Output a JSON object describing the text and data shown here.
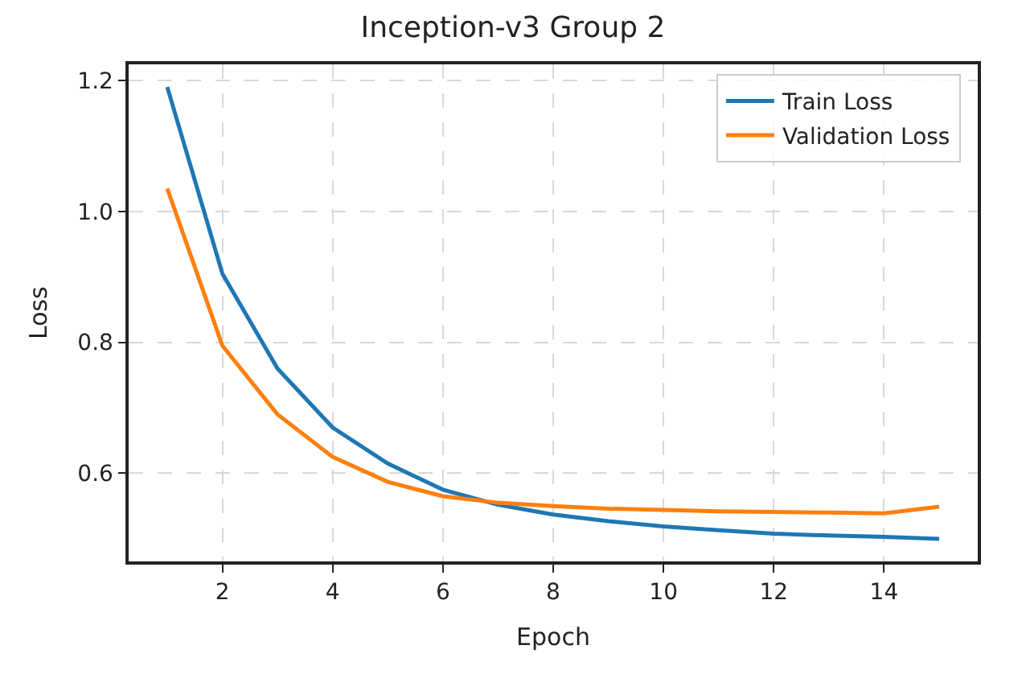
{
  "chart_data": {
    "type": "line",
    "title": "Inception-v3 Group 2",
    "xlabel": "Epoch",
    "ylabel": "Loss",
    "x": [
      1,
      2,
      3,
      4,
      5,
      6,
      7,
      8,
      9,
      10,
      11,
      12,
      13,
      14,
      15
    ],
    "series": [
      {
        "name": "Train Loss",
        "color": "#1f77b4",
        "values": [
          1.19,
          0.905,
          0.76,
          0.67,
          0.615,
          0.575,
          0.552,
          0.537,
          0.527,
          0.519,
          0.513,
          0.508,
          0.505,
          0.503,
          0.5
        ]
      },
      {
        "name": "Validation Loss",
        "color": "#ff7f0e",
        "values": [
          1.035,
          0.795,
          0.69,
          0.625,
          0.587,
          0.565,
          0.555,
          0.55,
          0.546,
          0.544,
          0.542,
          0.541,
          0.54,
          0.539,
          0.549
        ]
      }
    ],
    "xlim": [
      0.3,
      15.7
    ],
    "xticks": [
      2,
      4,
      6,
      8,
      10,
      12,
      14
    ],
    "ylim": [
      0.4655,
      1.2245
    ],
    "yticks": [
      {
        "value": 0.6,
        "label": "0.6"
      },
      {
        "value": 0.8,
        "label": "0.8"
      },
      {
        "value": 1.0,
        "label": "1.0"
      },
      {
        "value": 1.2,
        "label": "1.2"
      }
    ],
    "grid": true,
    "legend": "top right",
    "line_style": "solid"
  }
}
